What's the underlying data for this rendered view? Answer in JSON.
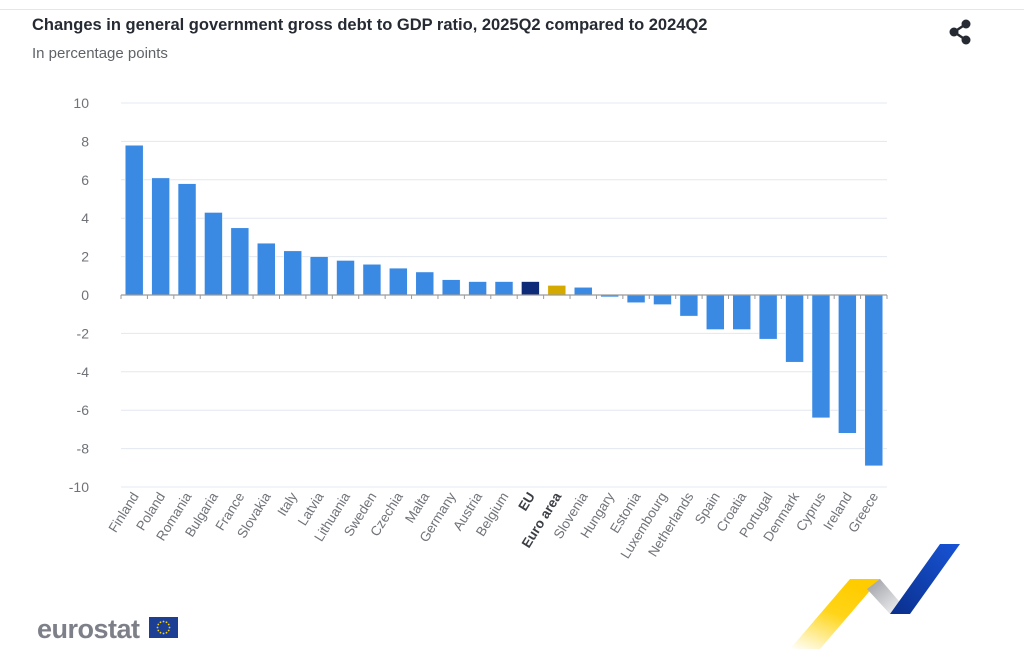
{
  "header": {
    "title": "Changes in general government gross debt to GDP ratio, 2025Q2 compared to 2024Q2",
    "subtitle": "In percentage points",
    "share_icon": "share-icon"
  },
  "footer": {
    "brand": "eurostat",
    "flag_icon": "eu-flag-icon"
  },
  "colors": {
    "country": "#3a8ae3",
    "eu": "#0e2b7a",
    "euro_area": "#d4a900",
    "grid": "#e3e8f0",
    "axis": "#9a9a9a",
    "label": "#6f7278"
  },
  "chart_data": {
    "type": "bar",
    "title": "Changes in general government gross debt to GDP ratio, 2025Q2 compared to 2024Q2",
    "subtitle": "In percentage points",
    "xlabel": "",
    "ylabel": "",
    "ylim": [
      -10,
      10
    ],
    "yticks": [
      10,
      8,
      6,
      4,
      2,
      0,
      -2,
      -4,
      -6,
      -8,
      -10
    ],
    "grid": true,
    "legend": "none",
    "categories": [
      "Finland",
      "Poland",
      "Romania",
      "Bulgaria",
      "France",
      "Slovakia",
      "Italy",
      "Latvia",
      "Lithuania",
      "Sweden",
      "Czechia",
      "Malta",
      "Germany",
      "Austria",
      "Belgium",
      "EU",
      "Euro area",
      "Slovenia",
      "Hungary",
      "Estonia",
      "Luxembourg",
      "Netherlands",
      "Spain",
      "Croatia",
      "Portugal",
      "Denmark",
      "Cyprus",
      "Ireland",
      "Greece"
    ],
    "values": [
      7.8,
      6.1,
      5.8,
      4.3,
      3.5,
      2.7,
      2.3,
      2.0,
      1.8,
      1.6,
      1.4,
      1.2,
      0.8,
      0.7,
      0.7,
      0.7,
      0.5,
      0.4,
      -0.1,
      -0.4,
      -0.5,
      -1.1,
      -1.8,
      -1.8,
      -2.3,
      -3.5,
      -6.4,
      -7.2,
      -8.9
    ],
    "highlight": {
      "EU": "eu",
      "Euro area": "euro_area"
    },
    "bold_categories": [
      "EU",
      "Euro area"
    ]
  }
}
